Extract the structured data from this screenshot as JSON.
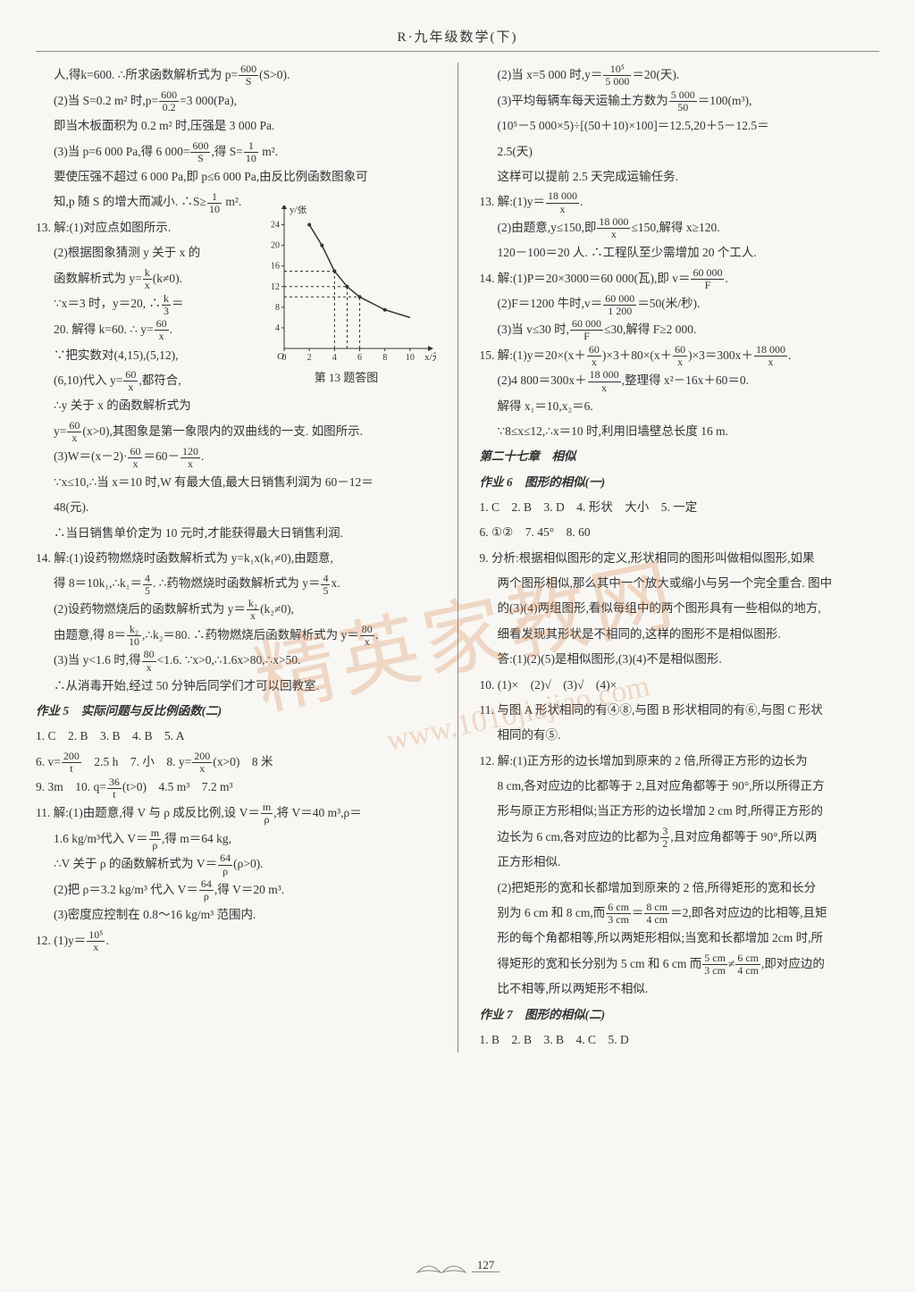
{
  "header": "R·九年级数学(下)",
  "page_number": "127",
  "watermark_main": "精英家教网",
  "watermark_url": "www.1010jiajiao.com",
  "graph": {
    "caption": "第 13 题答图",
    "x_label": "x/元",
    "y_label": "y/张",
    "x_ticks": [
      0,
      2,
      4,
      6,
      8,
      10
    ],
    "y_ticks": [
      0,
      4,
      8,
      12,
      16,
      20,
      24
    ],
    "curve_points": [
      [
        2,
        24
      ],
      [
        3,
        20
      ],
      [
        4,
        15
      ],
      [
        5,
        12
      ],
      [
        6,
        10
      ],
      [
        8,
        7.5
      ],
      [
        10,
        6
      ]
    ],
    "guide_lines": [
      [
        4,
        15
      ],
      [
        5,
        12
      ],
      [
        6,
        10
      ]
    ],
    "axis_color": "#333333",
    "curve_color": "#333333",
    "guide_color": "#333333",
    "background": "#f8f7f3"
  },
  "left": {
    "l01a": "人,得k=600. ∴所求函数解析式为 p=",
    "l01b": "(S>0).",
    "f01n": "600",
    "f01d": "S",
    "l02a": "(2)当 S=0.2 m² 时,p=",
    "l02b": "=3 000(Pa),",
    "f02n": "600",
    "f02d": "0.2",
    "l03": "即当木板面积为 0.2 m² 时,压强是 3 000 Pa.",
    "l04a": "(3)当 p=6 000 Pa,得 6 000=",
    "l04b": ",得 S=",
    "l04c": " m².",
    "f04an": "600",
    "f04ad": "S",
    "f04bn": "1",
    "f04bd": "10",
    "l05": "要使压强不超过 6 000 Pa,即 p≤6 000 Pa,由反比例函数图象可",
    "l06a": "知,p 随 S 的增大而减小. ∴S≥",
    "l06b": " m².",
    "f06n": "1",
    "f06d": "10",
    "l07": "13. 解:(1)对应点如图所示.",
    "l08": "(2)根据图象猜测 y 关于 x 的",
    "l09a": "函数解析式为 y=",
    "l09b": "(k≠0).",
    "f09n": "k",
    "f09d": "x",
    "l10a": "∵x＝3 时，y＝20, ∴",
    "l10b": "＝",
    "f10n": "k",
    "f10d": "3",
    "l11a": "20. 解得 k=60. ∴ y=",
    "l11b": ".",
    "f11n": "60",
    "f11d": "x",
    "l12": "∵把实数对(4,15),(5,12),",
    "l13a": "(6,10)代入 y=",
    "l13b": ",都符合,",
    "f13n": "60",
    "f13d": "x",
    "l14": "∴y 关于 x 的函数解析式为",
    "l15a": "y=",
    "l15b": "(x>0),其图象是第一象限内的双曲线的一支. 如图所示.",
    "f15n": "60",
    "f15d": "x",
    "l16a": "(3)W＝(x－2)·",
    "l16b": "＝60－",
    "l16c": ".",
    "f16an": "60",
    "f16ad": "x",
    "f16bn": "120",
    "f16bd": "x",
    "l17": "∵x≤10,∴当 x＝10 时,W 有最大值,最大日销售利润为 60－12＝",
    "l18": "48(元).",
    "l19": "∴当日销售单价定为 10 元时,才能获得最大日销售利润.",
    "l20": "14. 解:(1)设药物燃烧时函数解析式为 y=k₁x(k₁≠0),由题意,",
    "l21a": "得 8＝10k₁,∴k₁＝",
    "l21b": ". ∴药物燃烧时函数解析式为 y＝",
    "l21c": "x.",
    "f21an": "4",
    "f21ad": "5",
    "f21bn": "4",
    "f21bd": "5",
    "l22a": "(2)设药物燃烧后的函数解析式为 y＝",
    "l22b": "(k₂≠0),",
    "f22n": "k₂",
    "f22d": "x",
    "l23a": "由题意,得 8＝",
    "l23b": ",∴k₂＝80. ∴药物燃烧后函数解析式为 y＝",
    "l23c": ".",
    "f23an": "k₂",
    "f23ad": "10",
    "f23bn": "80",
    "f23bd": "x",
    "l24a": "(3)当 y<1.6 时,得",
    "l24b": "<1.6. ∵x>0,∴1.6x>80,∴x>50.",
    "f24n": "80",
    "f24d": "x",
    "l25": "∴从消毒开始,经过 50 分钟后同学们才可以回教室.",
    "sec5": "作业 5　实际问题与反比例函数(二)",
    "l26": "1. C　2. B　3. B　4. B　5. A",
    "l27a": "6. v=",
    "l27b": "　2.5 h　7. 小　8. y=",
    "l27c": "(x>0)　8 米",
    "f27an": "200",
    "f27ad": "t",
    "f27bn": "200",
    "f27bd": "x",
    "l28a": "9. 3m　10. q=",
    "l28b": "(t>0)　4.5 m³　7.2 m³",
    "f28n": "36",
    "f28d": "t",
    "l29a": "11. 解:(1)由题意,得 V 与 ρ 成反比例,设 V＝",
    "l29b": ",将 V＝40 m³,ρ＝",
    "f29n": "m",
    "f29d": "ρ",
    "l30a": "1.6 kg/m³代入 V＝",
    "l30b": ",得 m＝64 kg,",
    "f30n": "m",
    "f30d": "ρ",
    "l31a": "∴V 关于 ρ 的函数解析式为 V＝",
    "l31b": "(ρ>0).",
    "f31n": "64",
    "f31d": "ρ",
    "l32a": "(2)把 ρ＝3.2 kg/m³ 代入 V＝",
    "l32b": ",得 V＝20 m³.",
    "f32n": "64",
    "f32d": "ρ",
    "l33": "(3)密度应控制在 0.8～16 kg/m³ 范围内.",
    "l34a": "12. (1)y＝",
    "l34b": ".",
    "f34n": "10⁵",
    "f34d": "x"
  },
  "right": {
    "r01a": "(2)当 x=5 000 时,y＝",
    "r01b": "＝20(天).",
    "f01n": "10⁵",
    "f01d": "5 000",
    "r02a": "(3)平均每辆车每天运输土方数为",
    "r02b": "＝100(m³),",
    "f02n": "5 000",
    "f02d": "50",
    "r03": "(10⁵－5 000×5)÷[(50＋10)×100]＝12.5,20＋5－12.5＝",
    "r04": "2.5(天)",
    "r05": "这样可以提前 2.5 天完成运输任务.",
    "r06a": "13. 解:(1)y＝",
    "r06b": ".",
    "f06n": "18 000",
    "f06d": "x",
    "r07a": "(2)由题意,y≤150,即",
    "r07b": "≤150,解得 x≥120.",
    "f07n": "18 000",
    "f07d": "x",
    "r08": "120－100＝20 人. ∴工程队至少需增加 20 个工人.",
    "r09a": "14. 解:(1)P＝20×3000＝60 000(瓦),即 v＝",
    "r09b": ".",
    "f09n": "60 000",
    "f09d": "F",
    "r10a": "(2)F＝1200 牛时,v＝",
    "r10b": "＝50(米/秒).",
    "f10n": "60 000",
    "f10d": "1 200",
    "r11a": "(3)当 v≤30 时,",
    "r11b": "≤30,解得 F≥2 000.",
    "f11n": "60 000",
    "f11d": "F",
    "r12a": "15. 解:(1)y＝20×(x＋",
    "r12b": ")×3＋80×(x＋",
    "r12c": ")×3＝300x＋",
    "r12d": ".",
    "f12an": "60",
    "f12ad": "x",
    "f12bn": "60",
    "f12bd": "x",
    "f12cn": "18 000",
    "f12cd": "x",
    "r13a": "(2)4 800＝300x＋",
    "r13b": ",整理得 x²－16x＋60＝0.",
    "f13n": "18 000",
    "f13d": "x",
    "r14": "解得 x₁＝10,x₂＝6.",
    "r15": "∵8≤x≤12,∴x＝10 时,利用旧墙壁总长度 16 m.",
    "chapter": "第二十七章　相似",
    "sec6": "作业 6　图形的相似(一)",
    "r16": "1. C　2. B　3. D　4. 形状　大小　5. 一定",
    "r17": "6. ①②　7. 45°　8. 60",
    "r18": "9. 分析:根据相似图形的定义,形状相同的图形叫做相似图形,如果",
    "r19": "两个图形相似,那么其中一个放大或缩小与另一个完全重合. 图中",
    "r20": "的(3)(4)两组图形,看似每组中的两个图形具有一些相似的地方,",
    "r21": "细看发现其形状是不相同的,这样的图形不是相似图形.",
    "r22": "答:(1)(2)(5)是相似图形,(3)(4)不是相似图形.",
    "r23": "10. (1)×　(2)√　(3)√　(4)×",
    "r24": "11. 与图 A 形状相同的有④⑧,与图 B 形状相同的有⑥,与图 C 形状",
    "r25": "相同的有⑤.",
    "r26": "12. 解:(1)正方形的边长增加到原来的 2 倍,所得正方形的边长为",
    "r27": "8 cm,各对应边的比都等于 2,且对应角都等于 90°,所以所得正方",
    "r28": "形与原正方形相似;当正方形的边长增加 2 cm 时,所得正方形的",
    "r29a": "边长为 6 cm,各对应边的比都为",
    "r29b": ",且对应角都等于 90°,所以两",
    "f29n": "3",
    "f29d": "2",
    "r30": "正方形相似.",
    "r31": "(2)把矩形的宽和长都增加到原来的 2 倍,所得矩形的宽和长分",
    "r32a": "别为 6 cm 和 8 cm,而",
    "r32b": "＝",
    "r32c": "＝2,即各对应边的比相等,且矩",
    "f32an": "6 cm",
    "f32ad": "3 cm",
    "f32bn": "8 cm",
    "f32bd": "4 cm",
    "r33": "形的每个角都相等,所以两矩形相似;当宽和长都增加 2cm 时,所",
    "r34a": "得矩形的宽和长分别为 5 cm 和 6 cm 而",
    "r34b": "≠",
    "r34c": ",即对应边的",
    "f34an": "5 cm",
    "f34ad": "3 cm",
    "f34bn": "6 cm",
    "f34bd": "4 cm",
    "r35": "比不相等,所以两矩形不相似.",
    "sec7": "作业 7　图形的相似(二)",
    "r36": "1. B　2. B　3. B　4. C　5. D"
  }
}
